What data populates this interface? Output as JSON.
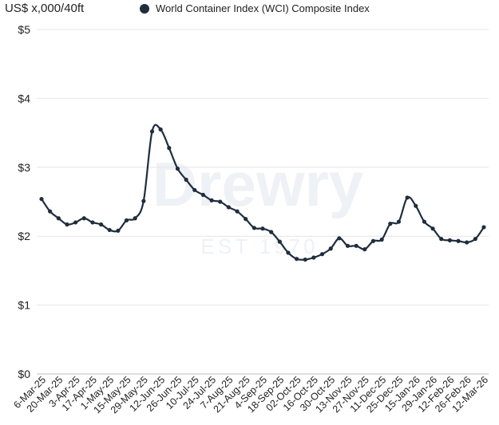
{
  "chart_data": {
    "type": "line",
    "unit_label": "US$ x,000/40ft",
    "ylim": [
      0,
      5
    ],
    "yticks": [
      {
        "v": 0,
        "label": "$0"
      },
      {
        "v": 1,
        "label": "$1"
      },
      {
        "v": 2,
        "label": "$2"
      },
      {
        "v": 3,
        "label": "$3"
      },
      {
        "v": 4,
        "label": "$4"
      },
      {
        "v": 5,
        "label": "$5"
      }
    ],
    "grid": true,
    "legend_position": "top",
    "watermark": {
      "text": "Drewry",
      "subtext": "EST 1970"
    },
    "x_tick_labels": [
      "6-Mar-25",
      "20-Mar-25",
      "3-Apr-25",
      "17-Apr-25",
      "1-May-25",
      "15-May-25",
      "29-May-25",
      "12-Jun-25",
      "26-Jun-25",
      "10-Jul-25",
      "24-Jul-25",
      "7-Aug-25",
      "21-Aug-25",
      "4-Sep-25",
      "18-Sep-25",
      "02-Oct-25",
      "16-Oct-25",
      "30-Oct-25",
      "13-Nov-25",
      "27-Nov-25",
      "11-Dec-25",
      "25-Dec-25",
      "15-Jan-26",
      "29-Jan-26",
      "12-Feb-26",
      "26-Feb-26",
      "12-Mar-26"
    ],
    "series": [
      {
        "name": "World Container Index (WCI) Composite Index",
        "color": "#1f2d3d",
        "values": [
          2.54,
          2.36,
          2.26,
          2.17,
          2.2,
          2.26,
          2.2,
          2.17,
          2.09,
          2.08,
          2.23,
          2.26,
          2.51,
          3.52,
          3.55,
          3.28,
          2.98,
          2.82,
          2.67,
          2.6,
          2.52,
          2.5,
          2.42,
          2.36,
          2.25,
          2.12,
          2.11,
          2.06,
          1.92,
          1.76,
          1.67,
          1.66,
          1.69,
          1.74,
          1.82,
          1.97,
          1.86,
          1.86,
          1.81,
          1.93,
          1.95,
          2.18,
          2.21,
          2.56,
          2.44,
          2.21,
          2.11,
          1.96,
          1.94,
          1.93,
          1.91,
          1.96,
          2.13
        ]
      }
    ]
  }
}
